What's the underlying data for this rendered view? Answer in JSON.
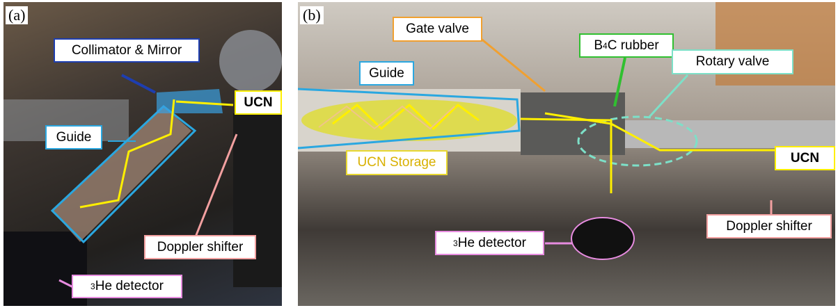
{
  "panel_a": {
    "tag": "(a)",
    "labels": {
      "collimator": "Collimator & Mirror",
      "ucn": "UCN",
      "guide": "Guide",
      "doppler": "Doppler shifter",
      "detector": {
        "sup": "3",
        "text": "He detector"
      }
    }
  },
  "panel_b": {
    "tag": "(b)",
    "labels": {
      "gate_valve": "Gate valve",
      "b4c": {
        "b": "B",
        "sub": "4",
        "rest": "C rubber"
      },
      "rotary_valve": "Rotary valve",
      "guide": "Guide",
      "storage": "UCN Storage",
      "ucn": "UCN",
      "doppler": "Doppler shifter",
      "detector": {
        "sup": "3",
        "text": "He detector"
      }
    }
  }
}
